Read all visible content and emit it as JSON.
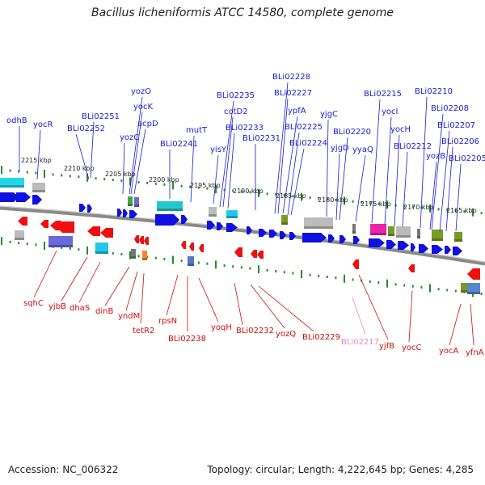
{
  "title": "Bacillus licheniformis ATCC 14580, complete genome",
  "accession_label": "Accession: NC_006322",
  "summary_label": "Topology: circular; Length: 4,222,645 bp; Genes: 4,285",
  "colors": {
    "forward_label": "#1a1ad6",
    "reverse_label": "#cc0f0f",
    "pseudo_label": "#ee88bb",
    "forward_arrow": "#1010e0",
    "reverse_arrow": "#ee1010",
    "backbone": "#7a7a7a",
    "tick": "#2a8a2a"
  },
  "scale_ticks": [
    "2215 kbp",
    "2210 kbp",
    "2205 kbp",
    "2200 kbp",
    "2195 kbp",
    "2190 kbp",
    "2185 kbp",
    "2180 kbp",
    "2175 kbp",
    "2170 kbp",
    "2165 kbp"
  ],
  "forward_genes": [
    "odhB",
    "yocR",
    "BLi02252",
    "BLi02251",
    "yozC",
    "yozO",
    "yocK",
    "acpD",
    "BLi02241",
    "mutT",
    "yisY",
    "cotD2",
    "BLi02235",
    "BLi02233",
    "BLi02231",
    "BLi02228",
    "BLi02227",
    "ypfA",
    "BLi02225",
    "BLi02224",
    "yjgC",
    "BLi02220",
    "yjgD",
    "yyaQ",
    "BLi02215",
    "yocI",
    "yocH",
    "BLi02212",
    "BLi02210",
    "BLi02208",
    "yozB",
    "BLi02207",
    "BLi02206",
    "BLi02205"
  ],
  "reverse_genes": [
    "sqhC",
    "yjbB",
    "dhaS",
    "dinB",
    "yndM",
    "tetR2",
    "rpsN",
    "BLi02238",
    "yoqH",
    "BLi02232",
    "yozQ",
    "BLi02229",
    "yjfB",
    "yocC",
    "yocA",
    "yfnA"
  ],
  "pseudo_genes": [
    "BLi02217"
  ]
}
